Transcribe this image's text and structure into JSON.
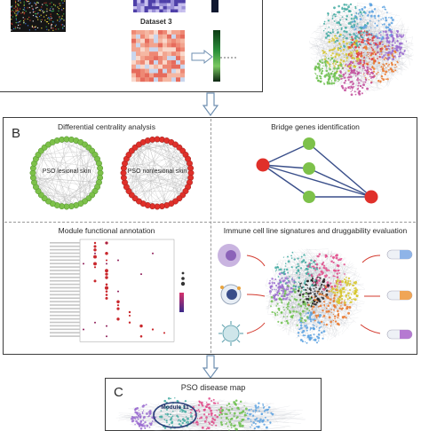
{
  "panel_a": {
    "dataset3_label": "Dataset 3"
  },
  "panel_b": {
    "letter": "B",
    "differential_title": "Differential centrality analysis",
    "lesional_label": "PSO lesional skin",
    "nonlesional_label": "PSO nonlesional skin",
    "bridge_title": "Bridge genes identification",
    "module_title": "Module functional annotation",
    "immune_title": "Immune cell line signatures and druggability evaluation"
  },
  "panel_c": {
    "letter": "C",
    "title": "PSO disease map",
    "module_label": "Module 11"
  },
  "colors": {
    "border": "#3d3d3d",
    "arrow": "#6f8fb0",
    "green_node": "#7dc14a",
    "red_node": "#e0302a",
    "dot_red": "#c9272c"
  }
}
